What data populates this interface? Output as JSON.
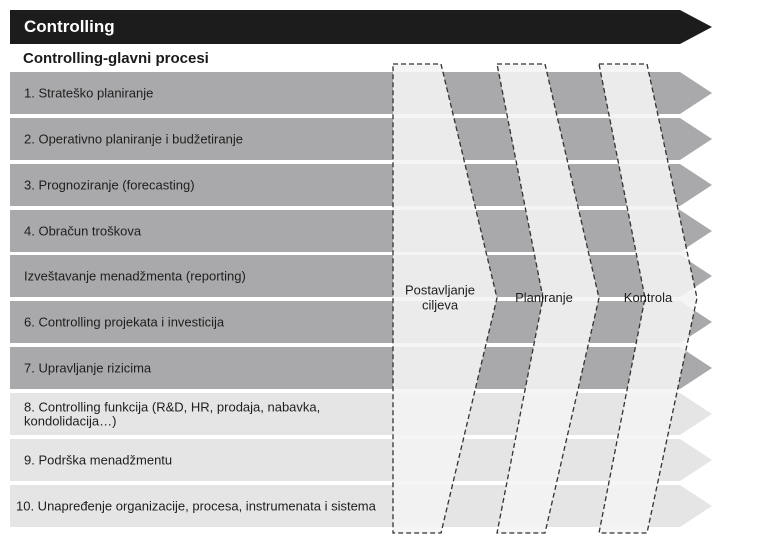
{
  "header": {
    "title": "Controlling"
  },
  "subheader": {
    "title": "Controlling-glavni procesi"
  },
  "processes": [
    {
      "label": [
        "1. Strateško planiranje"
      ],
      "shade": "dark"
    },
    {
      "label": [
        "2. Operativno planiranje i budžetiranje"
      ],
      "shade": "dark"
    },
    {
      "label": [
        "3. Prognoziranje (forecasting)"
      ],
      "shade": "dark"
    },
    {
      "label": [
        "4. Obračun troškova"
      ],
      "shade": "dark"
    },
    {
      "label": [
        "Izveštavanje menadžmenta (reporting)"
      ],
      "shade": "dark"
    },
    {
      "label": [
        "6. Controlling projekata i investicija"
      ],
      "shade": "dark"
    },
    {
      "label": [
        "7. Upravljanje rizicima"
      ],
      "shade": "dark"
    },
    {
      "label": [
        "8. Controlling funkcija (R&D, HR, prodaja, nabavka,",
        "kondolidacija…)"
      ],
      "shade": "light"
    },
    {
      "label": [
        "9. Podrška menadžmentu"
      ],
      "shade": "light"
    },
    {
      "label": [
        "10. Unapređenje organizacije, procesa, instrumenata i sistema"
      ],
      "shade": "light"
    }
  ],
  "phases": [
    {
      "label": [
        "Postavljanje",
        "ciljeva"
      ]
    },
    {
      "label": [
        "Planiranje"
      ]
    },
    {
      "label": [
        "Kontrola"
      ]
    }
  ],
  "colors": {
    "header_bg": "#1c1c1c",
    "row_dark": "#a9a9ab",
    "row_light": "#e5e5e6",
    "phase_fill": "#f4f4f4",
    "phase_border": "#333333"
  }
}
